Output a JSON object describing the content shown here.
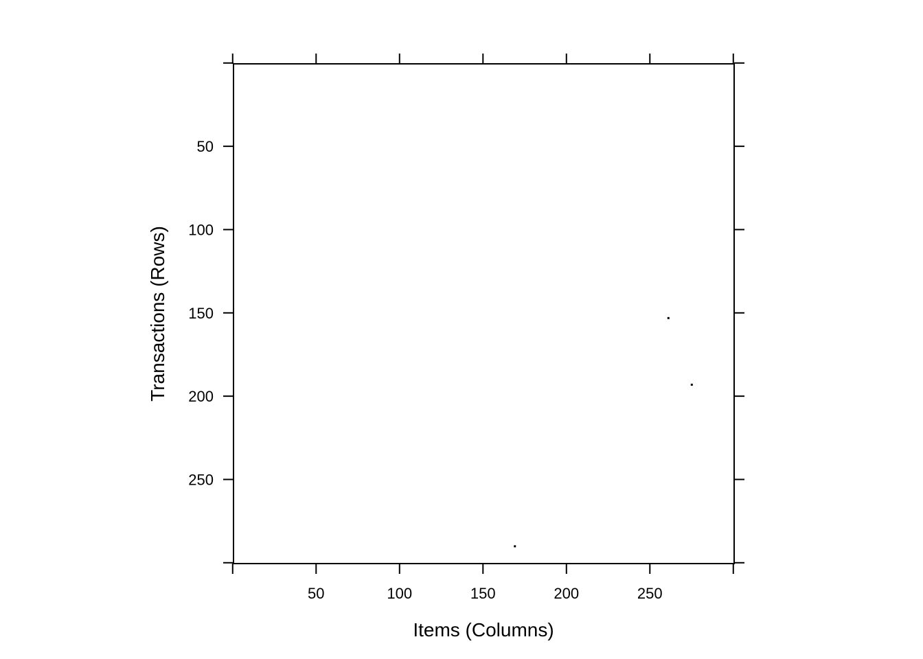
{
  "chart_data": {
    "type": "scatter",
    "title": "",
    "xlabel": "Items (Columns)",
    "ylabel": "Transactions (Rows)",
    "xlim": [
      0.5,
      300.5
    ],
    "ylim": [
      300.5,
      0.5
    ],
    "y_inverted": true,
    "grid": false,
    "x_ticks": [
      0,
      50,
      100,
      150,
      200,
      250,
      300
    ],
    "x_tick_labels": [
      "",
      "50",
      "100",
      "150",
      "200",
      "250",
      ""
    ],
    "y_ticks": [
      0,
      50,
      100,
      150,
      200,
      250,
      300
    ],
    "y_tick_labels": [
      "",
      "50",
      "100",
      "150",
      "200",
      "250",
      ""
    ],
    "points": [
      {
        "x": 261,
        "y": 153
      },
      {
        "x": 275,
        "y": 193
      },
      {
        "x": 169,
        "y": 290
      }
    ],
    "mark_color": "#000000"
  }
}
